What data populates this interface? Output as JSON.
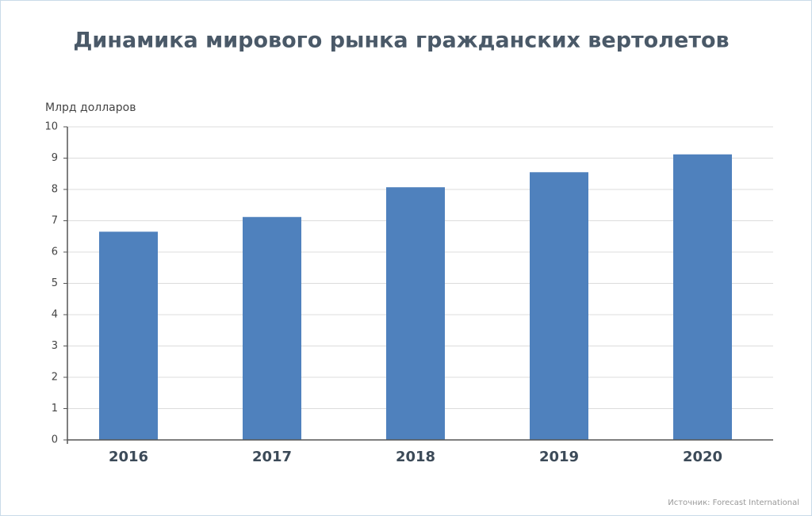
{
  "chart_data": {
    "type": "bar",
    "title": "Динамика мирового рынка гражданских вертолетов",
    "y_label": "Млрд долларов",
    "categories": [
      "2016",
      "2017",
      "2018",
      "2019",
      "2020"
    ],
    "values": [
      6.65,
      7.12,
      8.07,
      8.55,
      9.12
    ],
    "color": "#4f81bd",
    "ylim": [
      0,
      10
    ],
    "yticks": [
      0,
      1,
      2,
      3,
      4,
      5,
      6,
      7,
      8,
      9,
      10
    ],
    "grid": true,
    "source": "Источник: Forecast International"
  }
}
